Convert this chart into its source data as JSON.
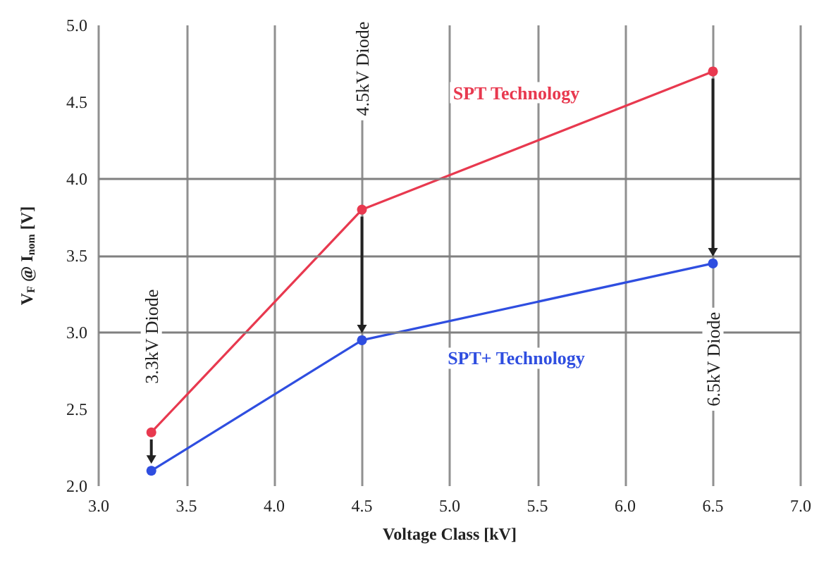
{
  "chart_data": {
    "type": "line",
    "xlabel": "Voltage Class [kV]",
    "ylabel": "V$_{F}$ @ I$_{nom}$ [V]",
    "x": [
      3.3,
      4.5,
      6.5
    ],
    "series": [
      {
        "name": "SPT Technology",
        "color": "#e8394f",
        "values": [
          2.35,
          3.8,
          4.7
        ]
      },
      {
        "name": "SPT+ Technology",
        "color": "#2f4ee0",
        "values": [
          2.1,
          2.95,
          3.45
        ]
      }
    ],
    "xlim": [
      3.0,
      7.0
    ],
    "xticks": [
      {
        "value": 3,
        "label": "3.0"
      },
      3.5,
      {
        "value": 4,
        "label": "4.0"
      },
      4.5,
      {
        "value": 5,
        "label": "5.0"
      },
      5.5,
      {
        "value": 6,
        "label": "6.0"
      },
      6.5,
      {
        "value": 7,
        "label": "7.0"
      }
    ],
    "ylim": [
      2.0,
      5.0
    ],
    "yticks": [
      {
        "value": 2,
        "label": "2.0"
      },
      2.5,
      {
        "value": 3,
        "label": "3.0"
      },
      3.5,
      {
        "value": 4,
        "label": "4.0"
      },
      4.5,
      {
        "value": 5,
        "label": "5.0"
      }
    ],
    "grid": "x",
    "marker": "circle",
    "line_style": "solid",
    "legend": false,
    "ref_lines": [
      {
        "axis": "y",
        "value": 3.0,
        "color": "#808080"
      },
      {
        "axis": "y",
        "value": 3.5,
        "color": "#808080"
      },
      {
        "axis": "y",
        "value": 4.0,
        "color": "#808080"
      }
    ],
    "annotations": [
      "3.3kV Diode",
      "4.5kV Diode",
      "6.5kV Diode"
    ]
  }
}
